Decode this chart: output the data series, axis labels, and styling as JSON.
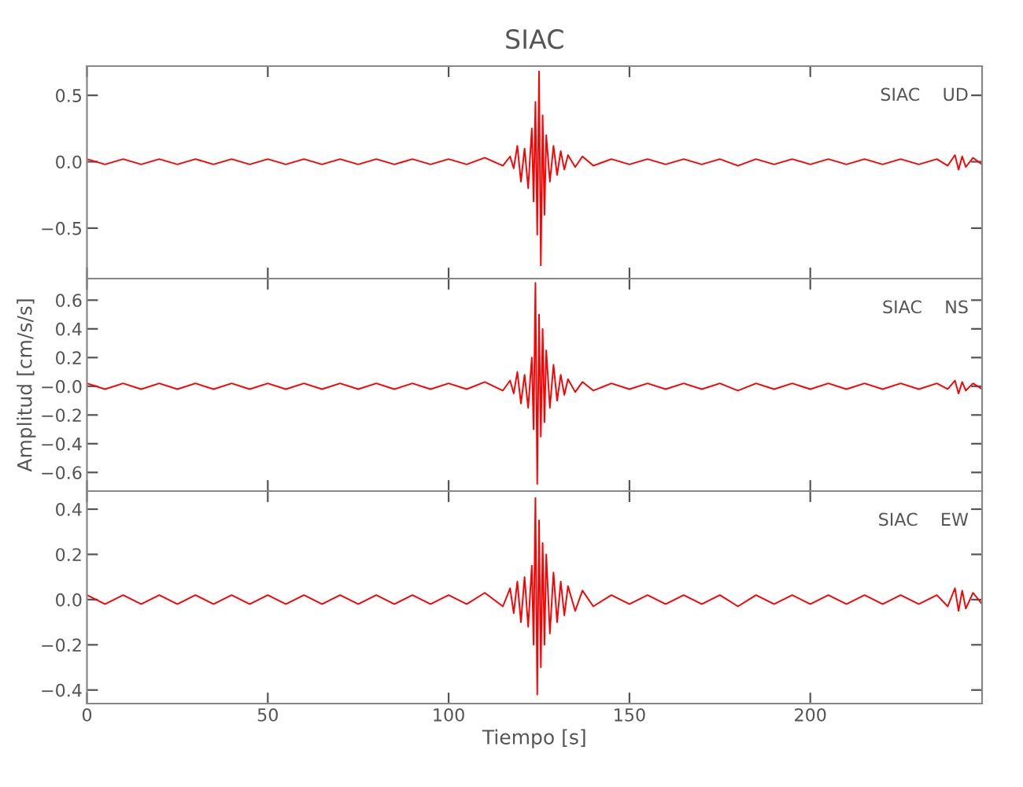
{
  "chart_data": [
    {
      "type": "line",
      "title": "SIAC",
      "tick_labels": "y",
      "annotations": [
        "SIAC    UD"
      ],
      "xlim": [
        0,
        247.5
      ],
      "ylim": [
        -0.88,
        0.72
      ],
      "yticks": [
        {
          "value": -0.5,
          "label": "−0.5"
        },
        {
          "value": 0,
          "label": "0.0"
        },
        {
          "value": 0.5,
          "label": "0.5"
        }
      ],
      "x": [
        0,
        5,
        10,
        15,
        20,
        25,
        30,
        35,
        40,
        45,
        50,
        55,
        60,
        65,
        70,
        75,
        80,
        85,
        90,
        95,
        100,
        105,
        110,
        115,
        117,
        118,
        119,
        120,
        121,
        122,
        123,
        123.5,
        124,
        124.5,
        125,
        125.5,
        126,
        126.5,
        127,
        128,
        129,
        130,
        131,
        132,
        133,
        135,
        137,
        140,
        145,
        150,
        155,
        160,
        165,
        170,
        175,
        180,
        185,
        190,
        195,
        200,
        205,
        210,
        215,
        220,
        225,
        230,
        235,
        238,
        240,
        241,
        242,
        243,
        245,
        247.5
      ],
      "series": [
        {
          "color": "#ff0000",
          "values": [
            0.02,
            -0.02,
            0.02,
            -0.02,
            0.02,
            -0.02,
            0.02,
            -0.02,
            0.02,
            -0.02,
            0.02,
            -0.02,
            0.02,
            -0.02,
            0.02,
            -0.02,
            0.02,
            -0.02,
            0.02,
            -0.02,
            0.02,
            -0.02,
            0.03,
            -0.03,
            0.04,
            -0.05,
            0.12,
            -0.15,
            0.1,
            -0.2,
            0.25,
            -0.3,
            0.45,
            -0.55,
            0.68,
            -0.78,
            0.35,
            -0.4,
            0.2,
            -0.15,
            0.12,
            -0.1,
            0.08,
            -0.06,
            0.05,
            -0.04,
            0.04,
            -0.03,
            0.02,
            -0.02,
            0.02,
            -0.02,
            0.02,
            -0.02,
            0.02,
            -0.03,
            0.02,
            -0.02,
            0.02,
            -0.02,
            0.02,
            -0.02,
            0.02,
            -0.02,
            0.02,
            -0.02,
            0.02,
            -0.03,
            0.05,
            -0.06,
            0.04,
            -0.04,
            0.03,
            -0.02
          ]
        }
      ]
    },
    {
      "type": "line",
      "ylabel": "Amplitud [cm/s/s]",
      "tick_labels": "y",
      "annotations": [
        "SIAC    NS"
      ],
      "xlim": [
        0,
        247.5
      ],
      "ylim": [
        -0.73,
        0.75
      ],
      "yticks": [
        {
          "value": -0.6,
          "label": "−0.6"
        },
        {
          "value": -0.4,
          "label": "−0.4"
        },
        {
          "value": -0.2,
          "label": "−0.2"
        },
        {
          "value": 0,
          "label": "−0.0"
        },
        {
          "value": 0.2,
          "label": "0.2"
        },
        {
          "value": 0.4,
          "label": "0.4"
        },
        {
          "value": 0.6,
          "label": "0.6"
        }
      ],
      "x": [
        0,
        5,
        10,
        15,
        20,
        25,
        30,
        35,
        40,
        45,
        50,
        55,
        60,
        65,
        70,
        75,
        80,
        85,
        90,
        95,
        100,
        105,
        110,
        115,
        117,
        118,
        119,
        120,
        121,
        122,
        123,
        123.5,
        124,
        124.5,
        125,
        125.5,
        126,
        126.5,
        127,
        128,
        129,
        130,
        131,
        132,
        133,
        135,
        137,
        140,
        145,
        150,
        155,
        160,
        165,
        170,
        175,
        180,
        185,
        190,
        195,
        200,
        205,
        210,
        215,
        220,
        225,
        230,
        235,
        238,
        240,
        241,
        242,
        243,
        245,
        247.5
      ],
      "series": [
        {
          "color": "#ff0000",
          "values": [
            0.02,
            -0.02,
            0.02,
            -0.02,
            0.02,
            -0.02,
            0.02,
            -0.02,
            0.02,
            -0.02,
            0.02,
            -0.02,
            0.02,
            -0.02,
            0.02,
            -0.02,
            0.02,
            -0.02,
            0.02,
            -0.02,
            0.02,
            -0.02,
            0.03,
            -0.03,
            0.04,
            -0.05,
            0.1,
            -0.12,
            0.08,
            -0.15,
            0.2,
            -0.3,
            0.72,
            -0.68,
            0.5,
            -0.35,
            0.4,
            -0.25,
            0.25,
            -0.15,
            0.15,
            -0.1,
            0.08,
            -0.06,
            0.05,
            -0.04,
            0.03,
            -0.03,
            0.02,
            -0.02,
            0.02,
            -0.02,
            0.02,
            -0.02,
            0.02,
            -0.03,
            0.02,
            -0.02,
            0.02,
            -0.02,
            0.02,
            -0.02,
            0.02,
            -0.02,
            0.02,
            -0.02,
            0.02,
            -0.02,
            0.04,
            -0.05,
            0.03,
            -0.03,
            0.02,
            -0.02
          ]
        }
      ]
    },
    {
      "type": "line",
      "xlabel": "Tiempo [s]",
      "annotations": [
        "SIAC    EW"
      ],
      "xlim": [
        0,
        247.5
      ],
      "xticks": [
        0,
        50,
        100,
        150,
        200
      ],
      "ylim": [
        -0.46,
        0.48
      ],
      "yticks": [
        {
          "value": -0.4,
          "label": "−0.4"
        },
        {
          "value": -0.2,
          "label": "−0.2"
        },
        {
          "value": 0,
          "label": "0.0"
        },
        {
          "value": 0.2,
          "label": "0.2"
        },
        {
          "value": 0.4,
          "label": "0.4"
        }
      ],
      "x": [
        0,
        5,
        10,
        15,
        20,
        25,
        30,
        35,
        40,
        45,
        50,
        55,
        60,
        65,
        70,
        75,
        80,
        85,
        90,
        95,
        100,
        105,
        110,
        115,
        117,
        118,
        119,
        120,
        121,
        122,
        123,
        123.5,
        124,
        124.5,
        125,
        125.5,
        126,
        126.5,
        127,
        128,
        129,
        130,
        131,
        132,
        133,
        135,
        137,
        140,
        145,
        150,
        155,
        160,
        165,
        170,
        175,
        180,
        185,
        190,
        195,
        200,
        205,
        210,
        215,
        220,
        225,
        230,
        235,
        238,
        240,
        241,
        242,
        243,
        245,
        247.5
      ],
      "series": [
        {
          "color": "#ff0000",
          "values": [
            0.02,
            -0.02,
            0.02,
            -0.02,
            0.02,
            -0.02,
            0.02,
            -0.02,
            0.02,
            -0.02,
            0.02,
            -0.02,
            0.02,
            -0.02,
            0.02,
            -0.02,
            0.02,
            -0.02,
            0.02,
            -0.02,
            0.02,
            -0.02,
            0.03,
            -0.03,
            0.05,
            -0.06,
            0.08,
            -0.1,
            0.1,
            -0.12,
            0.15,
            -0.2,
            0.45,
            -0.42,
            0.35,
            -0.3,
            0.25,
            -0.2,
            0.2,
            -0.15,
            0.12,
            -0.1,
            0.08,
            -0.07,
            0.06,
            -0.05,
            0.04,
            -0.03,
            0.02,
            -0.02,
            0.02,
            -0.02,
            0.02,
            -0.02,
            0.02,
            -0.03,
            0.02,
            -0.02,
            0.02,
            -0.02,
            0.02,
            -0.02,
            0.02,
            -0.02,
            0.02,
            -0.02,
            0.02,
            -0.03,
            0.05,
            -0.05,
            0.04,
            -0.04,
            0.03,
            -0.02
          ]
        }
      ]
    }
  ]
}
